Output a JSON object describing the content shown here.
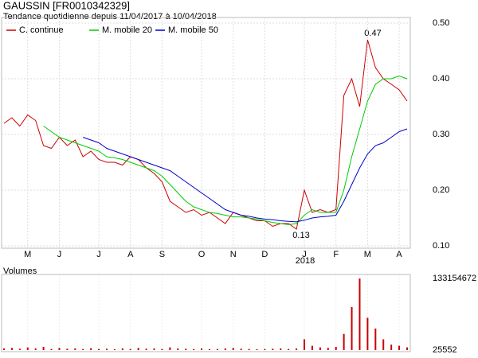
{
  "chart_data": [
    {
      "type": "line",
      "title": "GAUSSIN [FR0010342329]",
      "subtitle": "Tendance quotidienne depuis 11/04/2017 à 10/04/2018",
      "categories": [
        null,
        null,
        null,
        "M",
        null,
        null,
        null,
        "J",
        null,
        null,
        null,
        null,
        "J",
        null,
        null,
        null,
        "A",
        null,
        null,
        null,
        "S",
        null,
        null,
        null,
        null,
        "O",
        null,
        null,
        null,
        "N",
        null,
        null,
        null,
        "D",
        null,
        null,
        null,
        null,
        "J",
        null,
        null,
        null,
        "F",
        null,
        null,
        null,
        "M",
        null,
        null,
        null,
        "A",
        null
      ],
      "series": [
        {
          "name": "C. continue",
          "color": "#cc0000",
          "values": [
            0.32,
            0.33,
            0.315,
            0.335,
            0.325,
            0.28,
            0.275,
            0.295,
            0.28,
            0.29,
            0.26,
            0.27,
            0.255,
            0.25,
            0.25,
            0.245,
            0.26,
            0.255,
            0.24,
            0.23,
            0.215,
            0.18,
            0.17,
            0.16,
            0.165,
            0.155,
            0.16,
            0.15,
            0.14,
            0.16,
            0.155,
            0.15,
            0.145,
            0.145,
            0.135,
            0.14,
            0.14,
            0.13,
            0.2,
            0.16,
            0.165,
            0.16,
            0.165,
            0.37,
            0.4,
            0.35,
            0.47,
            0.42,
            0.4,
            0.39,
            0.38,
            0.36
          ]
        },
        {
          "name": "M. mobile 20",
          "color": "#00cc00",
          "values": [
            null,
            null,
            null,
            null,
            null,
            0.315,
            0.305,
            0.295,
            0.29,
            0.285,
            0.28,
            0.275,
            0.27,
            0.26,
            0.258,
            0.255,
            0.25,
            0.245,
            0.24,
            0.235,
            0.225,
            0.21,
            0.195,
            0.18,
            0.17,
            0.165,
            0.16,
            0.158,
            0.155,
            0.152,
            0.152,
            0.15,
            0.148,
            0.145,
            0.142,
            0.14,
            0.138,
            0.14,
            0.155,
            0.165,
            0.16,
            0.16,
            0.16,
            0.2,
            0.26,
            0.31,
            0.36,
            0.39,
            0.4,
            0.4,
            0.405,
            0.4
          ]
        },
        {
          "name": "M. mobile 50",
          "color": "#0000cc",
          "values": [
            null,
            null,
            null,
            null,
            null,
            null,
            null,
            null,
            null,
            null,
            0.295,
            0.29,
            0.285,
            0.275,
            0.27,
            0.265,
            0.26,
            0.255,
            0.25,
            0.245,
            0.24,
            0.235,
            0.225,
            0.215,
            0.205,
            0.195,
            0.185,
            0.175,
            0.165,
            0.16,
            0.155,
            0.153,
            0.15,
            0.148,
            0.147,
            0.145,
            0.144,
            0.143,
            0.146,
            0.15,
            0.152,
            0.153,
            0.155,
            0.18,
            0.21,
            0.24,
            0.265,
            0.28,
            0.285,
            0.295,
            0.305,
            0.31
          ]
        }
      ],
      "ylim": [
        0.1,
        0.5
      ],
      "yticks": [
        {
          "value": 0.1,
          "label": "0.10"
        },
        {
          "value": 0.2,
          "label": "0.20"
        },
        {
          "value": 0.3,
          "label": "0.30"
        },
        {
          "value": 0.4,
          "label": "0.40"
        },
        {
          "value": 0.5,
          "label": "0.50"
        }
      ],
      "grid": true,
      "annotations": [
        "0.47",
        "0.13",
        "2018"
      ]
    },
    {
      "type": "bar",
      "title": "Volumes",
      "color": "#cc0000",
      "values": [
        3000000,
        4000000,
        2500000,
        5000000,
        3000000,
        6000000,
        2000000,
        4000000,
        2500000,
        3000000,
        2000000,
        3500000,
        2000000,
        2500000,
        1500000,
        3000000,
        2000000,
        4000000,
        2500000,
        3000000,
        2000000,
        5000000,
        3000000,
        2500000,
        2000000,
        3000000,
        1500000,
        2000000,
        3000000,
        4000000,
        2500000,
        2000000,
        1500000,
        2000000,
        2500000,
        3000000,
        2000000,
        3000000,
        20000000,
        8000000,
        5000000,
        4000000,
        6000000,
        30000000,
        80000000,
        133000000,
        60000000,
        40000000,
        20000000,
        10000000,
        8000000,
        5000000
      ],
      "ylim": [
        25552,
        133154672
      ],
      "yticks": [
        25552,
        133154672
      ]
    }
  ]
}
